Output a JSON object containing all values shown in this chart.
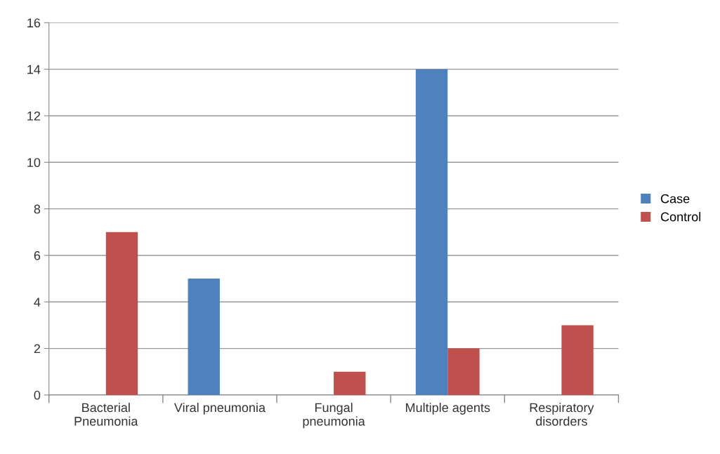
{
  "chart_data": {
    "type": "bar",
    "categories": [
      "Bacterial\nPneumonia",
      "Viral pneumonia",
      "Fungal\npneumonia",
      "Multiple agents",
      "Respiratory\ndisorders"
    ],
    "series": [
      {
        "name": "Case",
        "color": "#4f81bd",
        "values": [
          0,
          5,
          0,
          14,
          0
        ]
      },
      {
        "name": "Control",
        "color": "#c0504d",
        "values": [
          7,
          0,
          1,
          2,
          3
        ]
      }
    ],
    "ylim": [
      0,
      16
    ],
    "yticks": [
      0,
      2,
      4,
      6,
      8,
      10,
      12,
      14,
      16
    ],
    "grid": "y",
    "legend": "right"
  }
}
